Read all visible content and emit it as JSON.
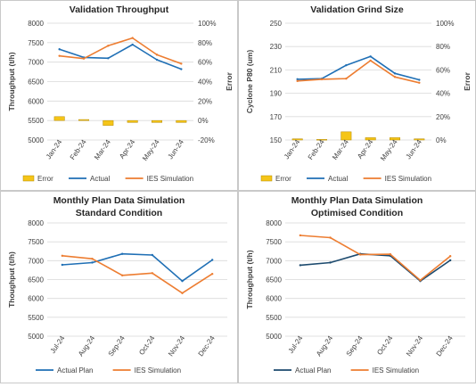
{
  "chart_data": [
    {
      "type": "bar+line",
      "title": "Validation Throughput",
      "subtitle": "",
      "ylabel": "Throughput (t/h)",
      "y2label": "Error",
      "categories": [
        "Jan-24",
        "Feb-24",
        "Mar-24",
        "Apr-24",
        "May-24",
        "Jun-24"
      ],
      "ylim": [
        5000,
        8000
      ],
      "yticks": [
        "5000",
        "5500",
        "6000",
        "6500",
        "7000",
        "7500",
        "8000"
      ],
      "y2lim": [
        -20,
        100
      ],
      "y2ticks": [
        "-20%",
        "0%",
        "20%",
        "40%",
        "60%",
        "80%",
        "100%"
      ],
      "bar_series": {
        "name": "Error",
        "values": [
          4,
          1,
          -5,
          -2,
          -2,
          -2
        ]
      },
      "series": [
        {
          "name": "Actual",
          "values": [
            7330,
            7120,
            7100,
            7450,
            7060,
            6820
          ]
        },
        {
          "name": "IES Simulation",
          "values": [
            7160,
            7090,
            7420,
            7620,
            7190,
            6960
          ]
        }
      ],
      "legend": [
        "Error",
        "Actual",
        "IES Simulation"
      ],
      "legend_position": "bottom"
    },
    {
      "type": "bar+line",
      "title": "Validation Grind Size",
      "subtitle": "",
      "ylabel": "Cyclone P80 (um)",
      "y2label": "Error",
      "categories": [
        "Jan-24",
        "Feb-24",
        "Mar-24",
        "Apr-24",
        "May-24",
        "Jun-24"
      ],
      "ylim": [
        150,
        250
      ],
      "yticks": [
        "150",
        "170",
        "190",
        "210",
        "230",
        "250"
      ],
      "y2lim": [
        0,
        100
      ],
      "y2ticks": [
        "0%",
        "20%",
        "40%",
        "60%",
        "80%",
        "100%"
      ],
      "bar_series": {
        "name": "Error",
        "values": [
          1,
          0.5,
          7,
          2,
          2,
          1
        ]
      },
      "series": [
        {
          "name": "Actual",
          "values": [
            202,
            202.5,
            214,
            221.5,
            207,
            201.5
          ]
        },
        {
          "name": "IES Simulation",
          "values": [
            200.5,
            202,
            202.5,
            218,
            204,
            199
          ]
        }
      ],
      "legend": [
        "Error",
        "Actual",
        "IES Simulation"
      ],
      "legend_position": "bottom"
    },
    {
      "type": "line",
      "title": "Monthly Plan Data Simulation",
      "subtitle": "Standard Condition",
      "ylabel": "Thoughput (t/h)",
      "categories": [
        "Jul-24",
        "Aug-24",
        "Sep-24",
        "Oct-24",
        "Nov-24",
        "Dec-24"
      ],
      "ylim": [
        5000,
        8000
      ],
      "yticks": [
        "5000",
        "5500",
        "6000",
        "6500",
        "7000",
        "7500",
        "8000"
      ],
      "series": [
        {
          "name": "Actual Plan",
          "values": [
            6890,
            6950,
            7180,
            7150,
            6460,
            7020
          ]
        },
        {
          "name": "IES Simulation",
          "values": [
            7130,
            7050,
            6610,
            6670,
            6140,
            6650
          ]
        }
      ],
      "legend": [
        "Actual Plan",
        "IES Simulation"
      ],
      "legend_position": "bottom"
    },
    {
      "type": "line",
      "title": "Monthly Plan Data Simulation",
      "subtitle": "Optimised Condition",
      "ylabel": "Throughput (t/h)",
      "categories": [
        "Jul-24",
        "Aug-24",
        "Sep-24",
        "Oct-24",
        "Nov-24",
        "Dec-24"
      ],
      "ylim": [
        5000,
        8000
      ],
      "yticks": [
        "5000",
        "5500",
        "6000",
        "6500",
        "7000",
        "7500",
        "8000"
      ],
      "series": [
        {
          "name": "Actual Plan",
          "values": [
            6880,
            6950,
            7180,
            7130,
            6460,
            7010
          ]
        },
        {
          "name": "IES Simulation",
          "values": [
            7670,
            7610,
            7160,
            7170,
            6480,
            7120
          ]
        }
      ],
      "legend": [
        "Actual Plan",
        "IES Simulation"
      ],
      "legend_position": "bottom"
    }
  ],
  "colors": {
    "actual": "#1f6fb5",
    "ies_simulation": "#ed7d31",
    "actual_plan_optimised": "#1c4a6e",
    "error_bar": "#f5c518",
    "error_bar_border": "#b58a00",
    "gridline": "#d9d9d9",
    "axis_text": "#404040",
    "title_text": "#262626"
  }
}
